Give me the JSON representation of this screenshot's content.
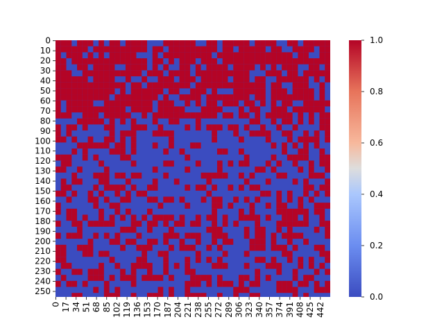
{
  "chart_data": {
    "type": "heatmap",
    "title": "",
    "xlabel": "",
    "ylabel": "",
    "x_tick_labels": [
      "0",
      "17",
      "34",
      "51",
      "68",
      "85",
      "102",
      "119",
      "136",
      "153",
      "170",
      "187",
      "204",
      "221",
      "238",
      "255",
      "272",
      "289",
      "306",
      "323",
      "340",
      "357",
      "374",
      "391",
      "408",
      "425",
      "442"
    ],
    "y_tick_labels": [
      "0",
      "10",
      "20",
      "30",
      "40",
      "50",
      "60",
      "70",
      "80",
      "90",
      "100",
      "110",
      "120",
      "130",
      "140",
      "150",
      "160",
      "170",
      "180",
      "190",
      "200",
      "210",
      "220",
      "230",
      "240",
      "250"
    ],
    "n_cols": 459,
    "n_rows": 256,
    "value_range": [
      0.0,
      1.0
    ],
    "colormap": "coolwarm",
    "colorbar_ticks": [
      "0.0",
      "0.2",
      "0.4",
      "0.6",
      "0.8",
      "1.0"
    ],
    "colors": {
      "low": "#3b4cc0",
      "mid": "#dddddd",
      "high": "#b40426"
    },
    "values_note": "binary 0/1 matrix with blocky clusters; dense 1s in top region (rows 0-80), sparser below"
  }
}
